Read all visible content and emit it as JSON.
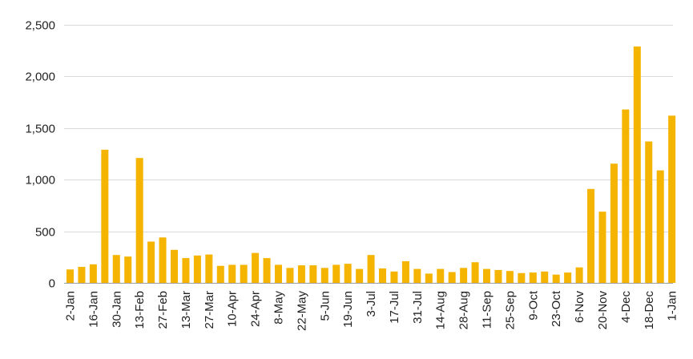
{
  "chart_data": {
    "type": "bar",
    "title": "",
    "xlabel": "",
    "ylabel": "",
    "ylim": [
      0,
      2500
    ],
    "yticks": [
      0,
      500,
      1000,
      1500,
      2000,
      2500
    ],
    "ytick_labels": [
      "0",
      "500",
      "1,000",
      "1,500",
      "2,000",
      "2,500"
    ],
    "grid": true,
    "legend": "none",
    "bar_color": "#F4B400",
    "x": [
      "2-Jan",
      "9-Jan",
      "16-Jan",
      "23-Jan",
      "30-Jan",
      "6-Feb",
      "13-Feb",
      "20-Feb",
      "27-Feb",
      "6-Mar",
      "13-Mar",
      "20-Mar",
      "27-Mar",
      "3-Apr",
      "10-Apr",
      "17-Apr",
      "24-Apr",
      "1-May",
      "8-May",
      "15-May",
      "22-May",
      "29-May",
      "5-Jun",
      "12-Jun",
      "19-Jun",
      "26-Jun",
      "3-Jul",
      "10-Jul",
      "17-Jul",
      "24-Jul",
      "31-Jul",
      "7-Aug",
      "14-Aug",
      "21-Aug",
      "28-Aug",
      "4-Sep",
      "11-Sep",
      "18-Sep",
      "25-Sep",
      "2-Oct",
      "9-Oct",
      "16-Oct",
      "23-Oct",
      "30-Oct",
      "6-Nov",
      "13-Nov",
      "20-Nov",
      "27-Nov",
      "4-Dec",
      "11-Dec",
      "18-Dec",
      "25-Dec",
      "1-Jan"
    ],
    "x_tick_labels": [
      "2-Jan",
      "16-Jan",
      "30-Jan",
      "13-Feb",
      "27-Feb",
      "13-Mar",
      "27-Mar",
      "10-Apr",
      "24-Apr",
      "8-May",
      "22-May",
      "5-Jun",
      "19-Jun",
      "3-Jul",
      "17-Jul",
      "31-Jul",
      "14-Aug",
      "28-Aug",
      "11-Sep",
      "25-Sep",
      "9-Oct",
      "23-Oct",
      "6-Nov",
      "20-Nov",
      "4-Dec",
      "18-Dec",
      "1-Jan"
    ],
    "values": [
      130,
      155,
      180,
      1290,
      270,
      255,
      1210,
      400,
      440,
      320,
      240,
      265,
      275,
      165,
      175,
      175,
      290,
      240,
      175,
      145,
      170,
      170,
      145,
      175,
      185,
      135,
      270,
      140,
      110,
      210,
      135,
      90,
      135,
      105,
      145,
      200,
      135,
      125,
      115,
      95,
      100,
      110,
      80,
      100,
      150,
      910,
      690,
      1155,
      1680,
      2290,
      1370,
      1090,
      1620
    ]
  }
}
